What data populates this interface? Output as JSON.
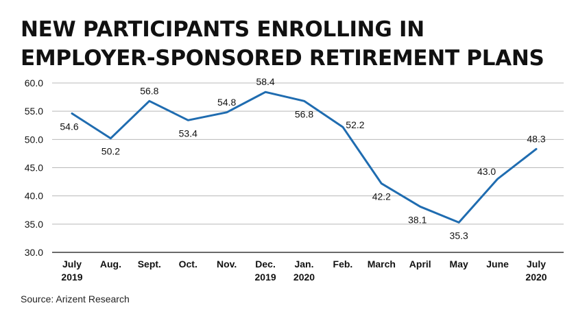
{
  "title_lines": [
    "NEW PARTICIPANTS ENROLLING IN",
    "EMPLOYER-SPONSORED RETIREMENT PLANS"
  ],
  "source": "Source: Arizent Research",
  "colors": {
    "line": "#1f6cb0",
    "grid": "#b8b8b8",
    "axis": "#111111"
  },
  "chart_data": {
    "type": "line",
    "title": "NEW PARTICIPANTS ENROLLING IN EMPLOYER-SPONSORED RETIREMENT PLANS",
    "categories": [
      [
        "July",
        "2019"
      ],
      [
        "Aug."
      ],
      [
        "Sept."
      ],
      [
        "Oct."
      ],
      [
        "Nov."
      ],
      [
        "Dec.",
        "2019"
      ],
      [
        "Jan.",
        "2020"
      ],
      [
        "Feb."
      ],
      [
        "March"
      ],
      [
        "April"
      ],
      [
        "May"
      ],
      [
        "June"
      ],
      [
        "July",
        "2020"
      ]
    ],
    "values": [
      54.6,
      50.2,
      56.8,
      53.4,
      54.8,
      58.4,
      56.8,
      52.2,
      42.2,
      38.1,
      35.3,
      43.0,
      48.3
    ],
    "value_labels": [
      "54.6",
      "50.2",
      "56.8",
      "53.4",
      "54.8",
      "58.4",
      "56.8",
      "52.2",
      "42.2",
      "38.1",
      "35.3",
      "43.0",
      "48.3"
    ],
    "ylim": [
      30,
      60
    ],
    "yticks": [
      "30.0",
      "35.0",
      "40.0",
      "45.0",
      "50.0",
      "55.0",
      "60.0"
    ],
    "grid": true,
    "xlabel": "",
    "ylabel": ""
  }
}
